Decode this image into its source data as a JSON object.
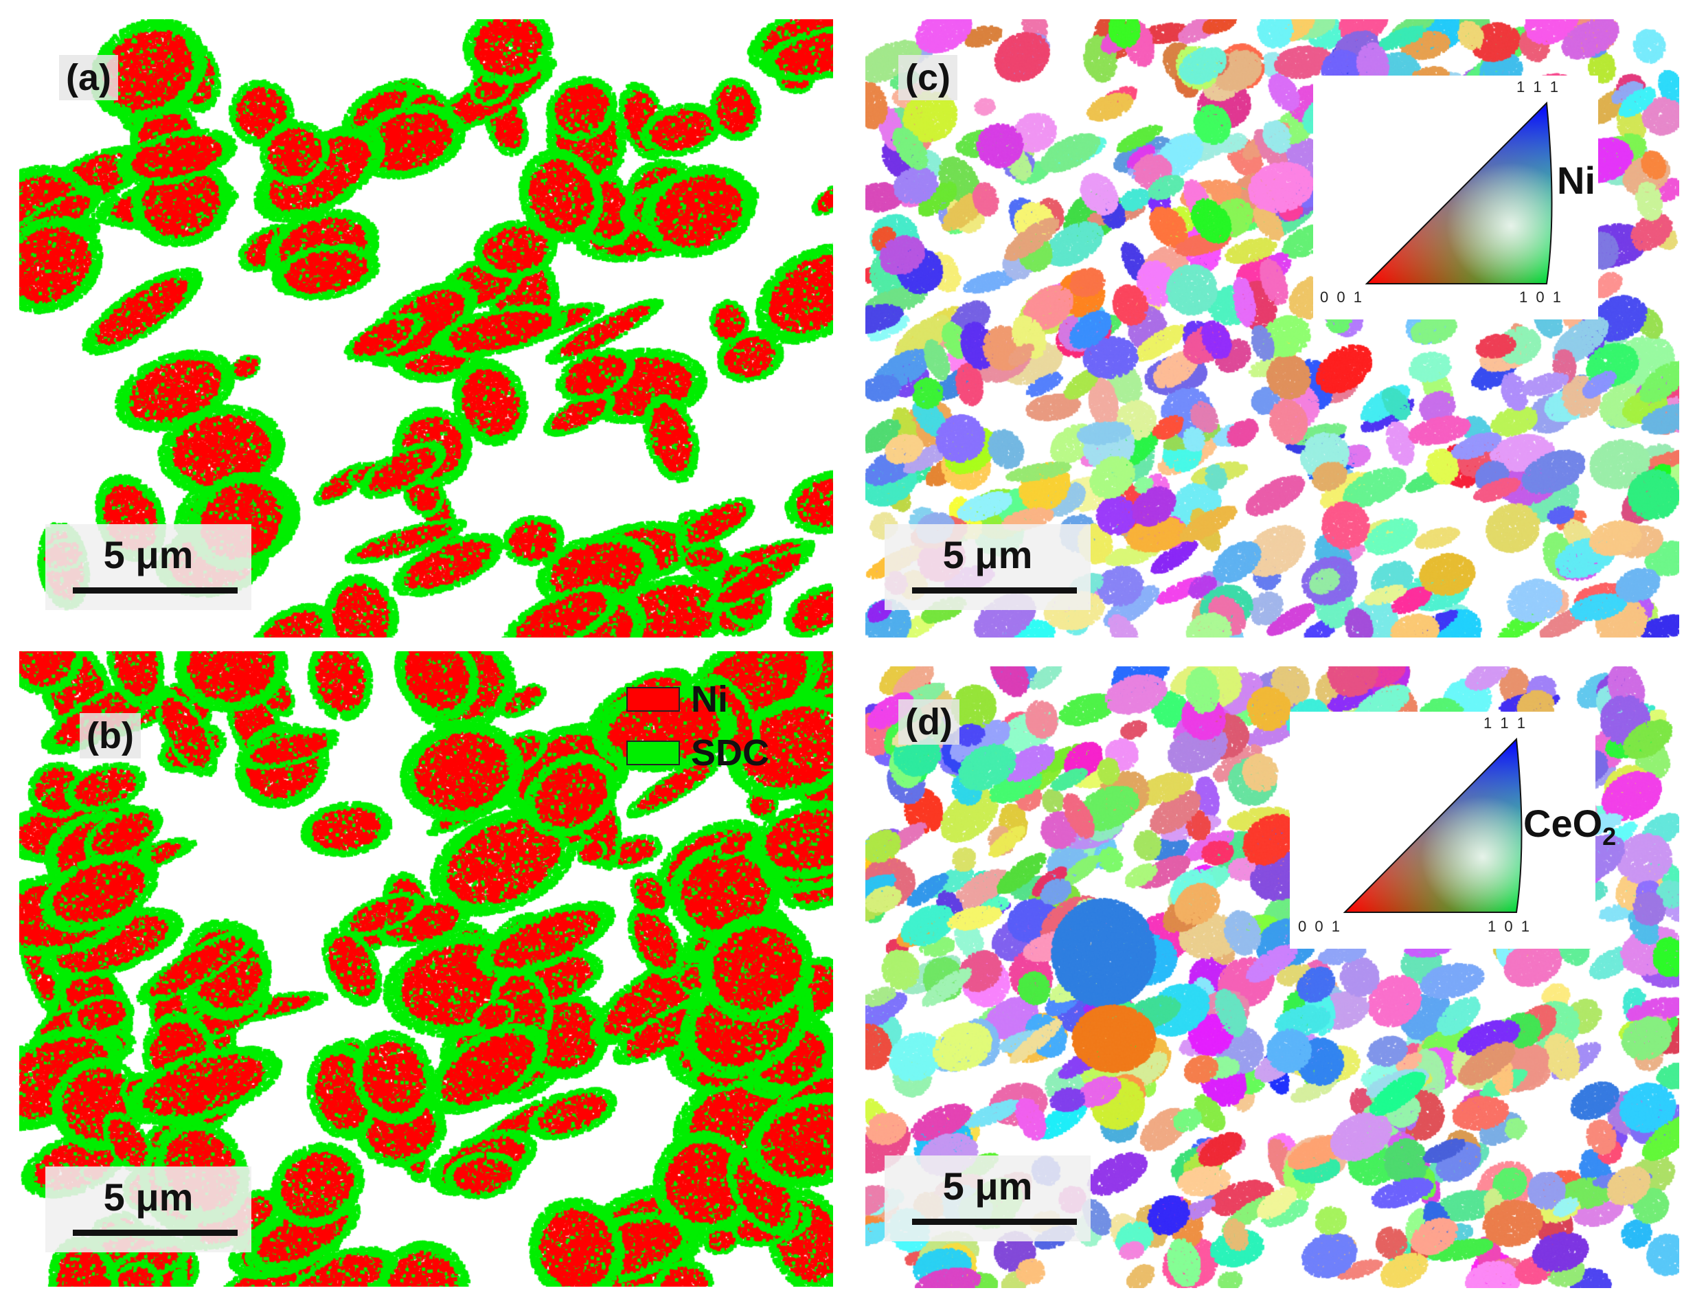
{
  "figure": {
    "panels": [
      {
        "id": "a",
        "label": "(a)",
        "scale_bar": "5 μm",
        "map": "phase"
      },
      {
        "id": "b",
        "label": "(b)",
        "scale_bar": "5 μm",
        "map": "phase"
      },
      {
        "id": "c",
        "label": "(c)",
        "scale_bar": "5 μm",
        "map": "orientation",
        "phase_label": "Ni"
      },
      {
        "id": "d",
        "label": "(d)",
        "scale_bar": "5 μm",
        "map": "orientation",
        "phase_label": "CeO",
        "phase_subscript": "2"
      }
    ],
    "legend": [
      {
        "label": "Ni",
        "color": "#ff0000"
      },
      {
        "label": "SDC",
        "color": "#00ee00"
      }
    ],
    "ipf_key": {
      "corners": [
        "0 0 1",
        "1 0 1",
        "1 1 1"
      ]
    },
    "colors": {
      "ni": "#ff0000",
      "sdc": "#00ee00",
      "background": "#ffffff"
    }
  }
}
